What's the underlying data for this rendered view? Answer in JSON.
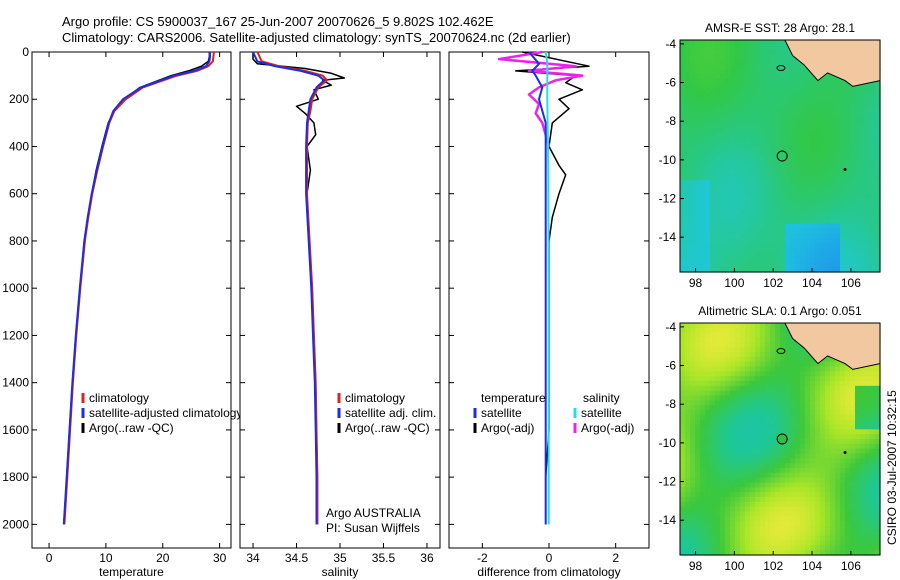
{
  "header": {
    "line1": "Argo profile: CS 5900037_167 25-Jun-2007 20070626_5 9.802S 102.462E",
    "line2": "Climatology: CARS2006. Satellite-adjusted climatology: synTS_20070624.nc (2d earlier)"
  },
  "side_label": "CSIRO 03-Jul-2007 10:32:15",
  "colors": {
    "climatology": "#e02020",
    "satellite": "#1c2ee0",
    "argo": "#000000",
    "salinity_satellite": "#20e0e8",
    "salinity_argo": "#f020f0",
    "land": "#f2c8a0",
    "ocean_mid": "#2ec85a"
  },
  "chart_data": [
    {
      "id": "temperature",
      "type": "line",
      "xlabel": "temperature",
      "ylabel": "",
      "xlim": [
        -3,
        32
      ],
      "ylim": [
        2100,
        0
      ],
      "xticks": [
        0,
        10,
        20,
        30
      ],
      "xtick_labels": [
        "0",
        "10",
        "20",
        "30"
      ],
      "yticks": [
        0,
        200,
        400,
        600,
        800,
        1000,
        1200,
        1400,
        1600,
        1800,
        2000
      ],
      "ytick_labels": [
        "0",
        "200",
        "400",
        "600",
        "800",
        "1000",
        "1200",
        "1400",
        "1600",
        "1800",
        "2000"
      ],
      "legend": [
        "climatology",
        "satellite-adjusted climatology",
        "Argo(..raw -QC)"
      ],
      "series": [
        {
          "name": "climatology",
          "depth": [
            0,
            20,
            40,
            60,
            80,
            100,
            150,
            200,
            250,
            300,
            400,
            500,
            600,
            700,
            800,
            1000,
            1200,
            1400,
            1600,
            1800,
            2000
          ],
          "values": [
            29.0,
            28.9,
            28.8,
            28.0,
            26.0,
            22.5,
            16.5,
            13.5,
            11.5,
            10.6,
            9.5,
            8.5,
            7.6,
            6.9,
            6.3,
            5.5,
            4.8,
            4.2,
            3.7,
            3.2,
            2.7
          ]
        },
        {
          "name": "satellite",
          "depth": [
            0,
            20,
            40,
            60,
            80,
            100,
            150,
            200,
            250,
            300,
            400,
            500,
            600,
            700,
            800,
            1000,
            1200,
            1400,
            1600,
            1800,
            2000
          ],
          "values": [
            28.3,
            28.3,
            28.2,
            27.6,
            25.5,
            22.0,
            16.2,
            13.0,
            11.3,
            10.5,
            9.4,
            8.4,
            7.5,
            6.8,
            6.2,
            5.4,
            4.7,
            4.1,
            3.6,
            3.1,
            2.6
          ]
        },
        {
          "name": "Argo",
          "depth": [
            0,
            20,
            40,
            60,
            80,
            100,
            150,
            200,
            250,
            300,
            400,
            500,
            600,
            700,
            800,
            1000,
            1200,
            1400,
            1600,
            1800,
            2000
          ],
          "values": [
            28.2,
            28.2,
            28.0,
            26.8,
            24.5,
            21.5,
            16.0,
            13.2,
            11.4,
            10.4,
            9.3,
            8.3,
            7.5,
            6.8,
            6.2,
            5.4,
            4.7,
            4.1,
            3.6,
            3.1,
            2.6
          ]
        }
      ]
    },
    {
      "id": "salinity",
      "type": "line",
      "xlabel": "salinity",
      "xlim": [
        33.85,
        36.15
      ],
      "ylim": [
        2100,
        0
      ],
      "xticks": [
        34,
        34.5,
        35,
        35.5,
        36
      ],
      "xtick_labels": [
        "34",
        "34.5",
        "35",
        "35.5",
        "36"
      ],
      "legend": [
        "climatology",
        "satellite adj. clim.",
        "Argo(..raw -QC)"
      ],
      "note": [
        "Argo AUSTRALIA",
        "PI: Susan Wijffels"
      ],
      "series": [
        {
          "name": "climatology",
          "depth": [
            0,
            40,
            60,
            80,
            100,
            120,
            150,
            200,
            250,
            300,
            400,
            600,
            800,
            1000,
            1200,
            1400,
            1600,
            1800,
            2000
          ],
          "values": [
            34.05,
            34.1,
            34.3,
            34.6,
            34.8,
            34.85,
            34.75,
            34.68,
            34.66,
            34.63,
            34.62,
            34.62,
            34.65,
            34.68,
            34.7,
            34.72,
            34.73,
            34.74,
            34.74
          ]
        },
        {
          "name": "satellite",
          "depth": [
            0,
            40,
            60,
            80,
            100,
            120,
            150,
            200,
            250,
            300,
            400,
            600,
            800,
            1000,
            1200,
            1400,
            1600,
            1800,
            2000
          ],
          "values": [
            34.0,
            34.05,
            34.25,
            34.55,
            34.75,
            34.82,
            34.73,
            34.66,
            34.64,
            34.62,
            34.61,
            34.61,
            34.64,
            34.67,
            34.69,
            34.71,
            34.72,
            34.73,
            34.73
          ]
        },
        {
          "name": "Argo",
          "depth": [
            0,
            30,
            50,
            70,
            90,
            110,
            120,
            140,
            160,
            200,
            230,
            260,
            300,
            350,
            400,
            500,
            600,
            800,
            1000,
            1200,
            1400,
            1600,
            1800,
            2000
          ],
          "values": [
            34.0,
            34.0,
            34.05,
            34.6,
            34.9,
            35.05,
            34.8,
            34.9,
            34.7,
            34.75,
            34.5,
            34.6,
            34.7,
            34.72,
            34.62,
            34.66,
            34.62,
            34.64,
            34.68,
            34.7,
            34.72,
            34.73,
            34.74,
            34.74
          ]
        }
      ]
    },
    {
      "id": "difference",
      "type": "line",
      "xlabel": "difference from climatology",
      "xlim": [
        -3,
        3
      ],
      "ylim": [
        2100,
        0
      ],
      "xticks": [
        -2,
        0,
        2
      ],
      "xtick_labels": [
        "-2",
        "0",
        "2"
      ],
      "legend_left_title": "temperature",
      "legend_right_title": "salinity",
      "legend_left": [
        "satellite",
        "Argo(-adj)"
      ],
      "legend_right": [
        "satellite",
        "Argo(-adj)"
      ],
      "series": [
        {
          "name": "temperature satellite",
          "depth": [
            0,
            50,
            80,
            100,
            150,
            200,
            300,
            500,
            1000,
            1500,
            2000
          ],
          "values": [
            -0.6,
            -0.3,
            -0.5,
            -0.4,
            -0.2,
            -0.3,
            -0.1,
            -0.1,
            -0.1,
            -0.1,
            -0.1
          ]
        },
        {
          "name": "temperature Argo",
          "depth": [
            0,
            60,
            80,
            100,
            130,
            160,
            200,
            240,
            300,
            400,
            480,
            520,
            600,
            700,
            800,
            1000,
            1200,
            1400,
            1600,
            1800,
            2000
          ],
          "values": [
            -0.8,
            1.2,
            -1.0,
            0.8,
            0.5,
            1.0,
            0.3,
            0.6,
            0.1,
            0.0,
            0.3,
            0.5,
            0.3,
            0.1,
            0.0,
            0.0,
            0.0,
            0.0,
            0.0,
            -0.1,
            -0.1
          ]
        },
        {
          "name": "salinity satellite",
          "depth": [
            0,
            50,
            100,
            200,
            500,
            1000,
            1500,
            2000
          ],
          "values": [
            -0.1,
            -0.05,
            -0.05,
            -0.05,
            -0.02,
            -0.01,
            -0.01,
            -0.01
          ]
        },
        {
          "name": "salinity Argo",
          "depth": [
            0,
            30,
            60,
            80,
            100,
            120,
            150,
            180,
            220,
            260,
            300,
            400
          ],
          "values": [
            -0.2,
            -1.5,
            0.8,
            -0.6,
            1.0,
            0.2,
            -0.3,
            -0.6,
            -0.3,
            -0.4,
            -0.2,
            0.0
          ]
        }
      ]
    },
    {
      "id": "sst_map",
      "type": "heatmap",
      "title": "AMSR-E SST: 28 Argo: 28.1",
      "xlim": [
        97.2,
        107.5
      ],
      "ylim": [
        -15.8,
        -3.8
      ],
      "xticks": [
        98,
        100,
        102,
        104,
        106
      ],
      "xtick_labels": [
        "98",
        "100",
        "102",
        "104",
        "106"
      ],
      "yticks": [
        -4,
        -6,
        -8,
        -10,
        -12,
        -14
      ],
      "ytick_labels": [
        "-4",
        "-6",
        "-8",
        "-10",
        "-12",
        "-14"
      ],
      "marker": {
        "lon": 102.462,
        "lat": -9.802
      }
    },
    {
      "id": "sla_map",
      "type": "heatmap",
      "title": "Altimetric SLA: 0.1 Argo: 0.051",
      "xlim": [
        97.2,
        107.5
      ],
      "ylim": [
        -15.8,
        -3.8
      ],
      "xticks": [
        98,
        100,
        102,
        104,
        106
      ],
      "xtick_labels": [
        "98",
        "100",
        "102",
        "104",
        "106"
      ],
      "yticks": [
        -4,
        -6,
        -8,
        -10,
        -12,
        -14
      ],
      "ytick_labels": [
        "-4",
        "-6",
        "-8",
        "-10",
        "-12",
        "-14"
      ],
      "marker": {
        "lon": 102.462,
        "lat": -9.802
      }
    }
  ]
}
